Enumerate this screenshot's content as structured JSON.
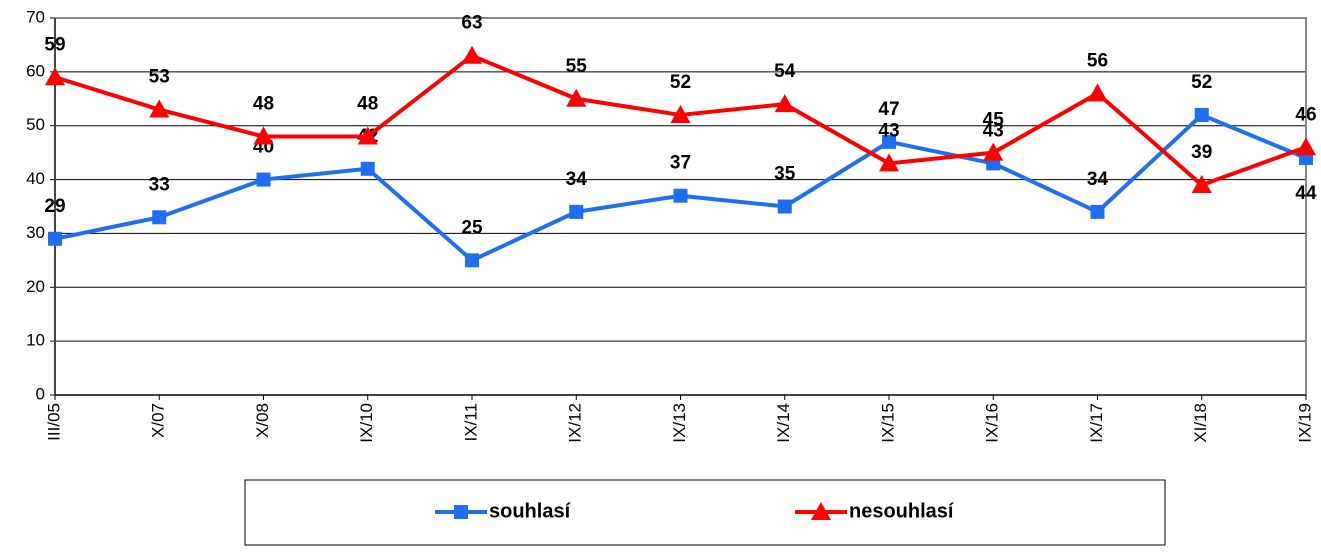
{
  "chart_data": {
    "type": "line",
    "categories": [
      "III/05",
      "X/07",
      "X/08",
      "IX/10",
      "IX/11",
      "IX/12",
      "IX/13",
      "IX/14",
      "IX/15",
      "IX/16",
      "IX/17",
      "XI/18",
      "IX/19"
    ],
    "series": [
      {
        "name": "souhlasí",
        "color": "#1f6ff2",
        "marker": "square",
        "values": [
          29,
          33,
          40,
          42,
          25,
          34,
          37,
          35,
          47,
          43,
          34,
          52,
          44
        ]
      },
      {
        "name": "nesouhlasí",
        "color": "#ff0000",
        "marker": "triangle",
        "values": [
          59,
          53,
          48,
          48,
          63,
          55,
          52,
          54,
          43,
          45,
          56,
          39,
          46
        ]
      }
    ],
    "ylim": [
      0,
      70
    ],
    "yticks": [
      0,
      10,
      20,
      30,
      40,
      50,
      60,
      70
    ],
    "grid": true,
    "legend": "bottom"
  }
}
